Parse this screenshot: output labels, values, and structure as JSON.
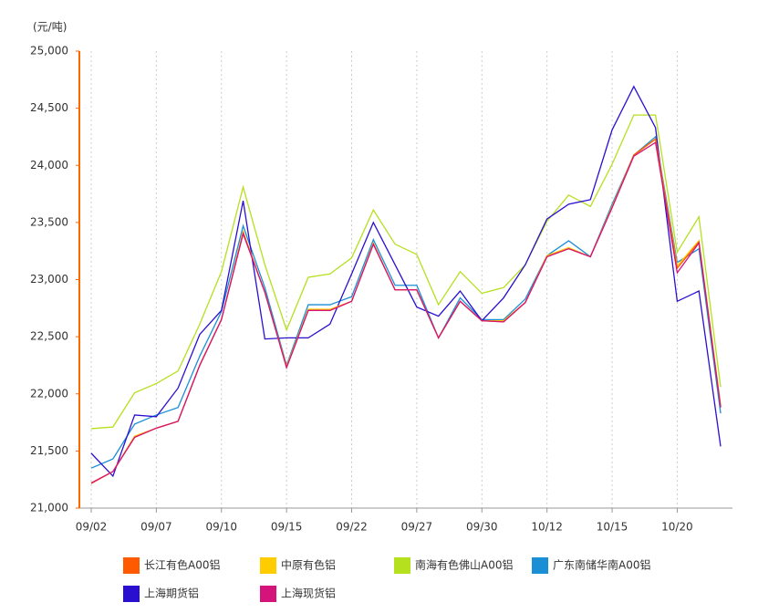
{
  "chart_data": {
    "type": "line",
    "y_unit": "(元/吨)",
    "categories": [
      "09/02",
      null,
      null,
      "09/07",
      null,
      null,
      "09/10",
      null,
      null,
      "09/15",
      null,
      null,
      "09/22",
      null,
      null,
      "09/27",
      null,
      null,
      "09/30",
      null,
      null,
      "10/12",
      null,
      null,
      "10/15",
      null,
      null,
      "10/20",
      null,
      null
    ],
    "ylim": [
      21000,
      25000
    ],
    "yticks": [
      {
        "value": 21000,
        "label": "21,000"
      },
      {
        "value": 21500,
        "label": "21,500"
      },
      {
        "value": 22000,
        "label": "22,000"
      },
      {
        "value": 22500,
        "label": "22,500"
      },
      {
        "value": 23000,
        "label": "23,000"
      },
      {
        "value": 23500,
        "label": "23,500"
      },
      {
        "value": 24000,
        "label": "24,000"
      },
      {
        "value": 24500,
        "label": "24,500"
      },
      {
        "value": 25000,
        "label": "25,000"
      }
    ],
    "grid": true,
    "series": [
      {
        "name": "长江有色A00铝",
        "color": "#ff5a00",
        "values": [
          21215,
          21320,
          21620,
          21700,
          21760,
          22250,
          22650,
          23410,
          22890,
          22230,
          22730,
          22730,
          22810,
          23310,
          22910,
          22910,
          22490,
          22810,
          22640,
          22630,
          22800,
          23200,
          23270,
          23200,
          23630,
          24090,
          24230,
          23100,
          23330,
          21890
        ]
      },
      {
        "name": "中原有色铝",
        "color": "#ffcc00",
        "values": [
          21220,
          21320,
          21630,
          21700,
          21760,
          22250,
          22650,
          23420,
          22890,
          22240,
          22740,
          22740,
          22810,
          23320,
          22910,
          22910,
          22490,
          22810,
          22640,
          22640,
          22800,
          23210,
          23280,
          23200,
          23640,
          24090,
          24230,
          23120,
          23340,
          21900
        ]
      },
      {
        "name": "南海有色佛山A00铝",
        "color": "#b5e01e",
        "values": [
          21695,
          21710,
          22010,
          22090,
          22200,
          22610,
          23070,
          23810,
          23130,
          22560,
          23020,
          23050,
          23190,
          23610,
          23310,
          23220,
          22780,
          23070,
          22880,
          22930,
          23130,
          23510,
          23740,
          23640,
          24010,
          24440,
          24440,
          23240,
          23550,
          22060
        ]
      },
      {
        "name": "广东南储华南A00铝",
        "color": "#1a8fd6",
        "values": [
          21350,
          21430,
          21735,
          21815,
          21880,
          22330,
          22720,
          23470,
          22930,
          22250,
          22780,
          22780,
          22850,
          23350,
          22950,
          22950,
          22490,
          22840,
          22650,
          22650,
          22830,
          23210,
          23340,
          23200,
          23660,
          24090,
          24250,
          23150,
          23270,
          21830
        ]
      },
      {
        "name": "上海期货铝",
        "color": "#2a0fd0",
        "values": [
          21480,
          21280,
          21815,
          21800,
          22050,
          22520,
          22730,
          23690,
          22480,
          22490,
          22490,
          22610,
          23050,
          23500,
          23130,
          22760,
          22680,
          22900,
          22640,
          22840,
          23130,
          23530,
          23660,
          23700,
          24310,
          24690,
          24330,
          22810,
          22900,
          21540
        ]
      },
      {
        "name": "上海现货铝",
        "color": "#d4147a",
        "values": [
          21220,
          21320,
          21620,
          21700,
          21760,
          22250,
          22650,
          23400,
          22890,
          22230,
          22730,
          22730,
          22810,
          23310,
          22910,
          22910,
          22490,
          22810,
          22640,
          22630,
          22800,
          23200,
          23270,
          23200,
          23630,
          24080,
          24200,
          23060,
          23320,
          21880
        ]
      }
    ]
  }
}
